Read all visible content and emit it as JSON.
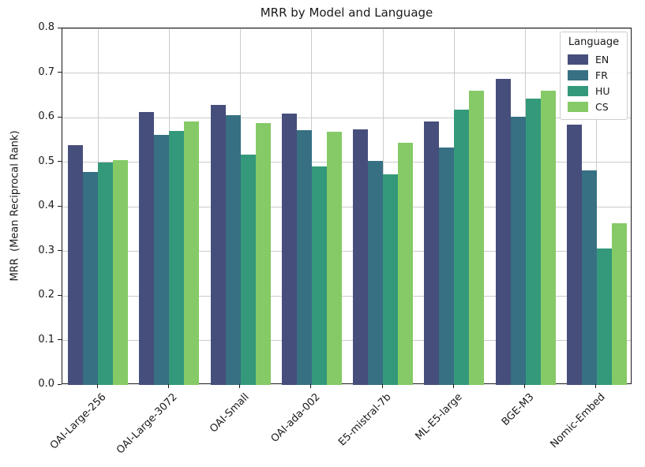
{
  "figure": {
    "title": "MRR by Model and Language",
    "background_color": "#ffffff",
    "text_color": "#1a1a1a",
    "grid_color": "#cbcbcb"
  },
  "chart_data": {
    "type": "bar",
    "title": "MRR by Model and Language",
    "xlabel": "",
    "ylabel": "MRR  (Mean Reciprocal Rank)",
    "ylim": [
      0.0,
      0.8
    ],
    "ytick_step": 0.1,
    "ytick_labels": [
      "0.0",
      "0.1",
      "0.2",
      "0.3",
      "0.4",
      "0.5",
      "0.6",
      "0.7",
      "0.8"
    ],
    "grid": true,
    "legend": {
      "title": "Language",
      "position": "upper right",
      "entries": [
        "EN",
        "FR",
        "HU",
        "CS"
      ]
    },
    "categories": [
      "OAI-Large-256",
      "OAI-Large-3072",
      "OAI-Small",
      "OAI-ada-002",
      "E5-mistral-7b",
      "ML-E5-large",
      "BGE-M3",
      "Nomic-Embed"
    ],
    "series": [
      {
        "name": "EN",
        "color": "#464e7c",
        "values": [
          0.538,
          0.613,
          0.629,
          0.608,
          0.573,
          0.591,
          0.687,
          0.584
        ]
      },
      {
        "name": "FR",
        "color": "#377083",
        "values": [
          0.477,
          0.561,
          0.606,
          0.572,
          0.502,
          0.532,
          0.602,
          0.481
        ]
      },
      {
        "name": "HU",
        "color": "#34997b",
        "values": [
          0.5,
          0.57,
          0.517,
          0.491,
          0.473,
          0.617,
          0.643,
          0.307
        ]
      },
      {
        "name": "CS",
        "color": "#85ca66",
        "values": [
          0.505,
          0.592,
          0.588,
          0.568,
          0.543,
          0.66,
          0.66,
          0.363
        ]
      }
    ]
  }
}
